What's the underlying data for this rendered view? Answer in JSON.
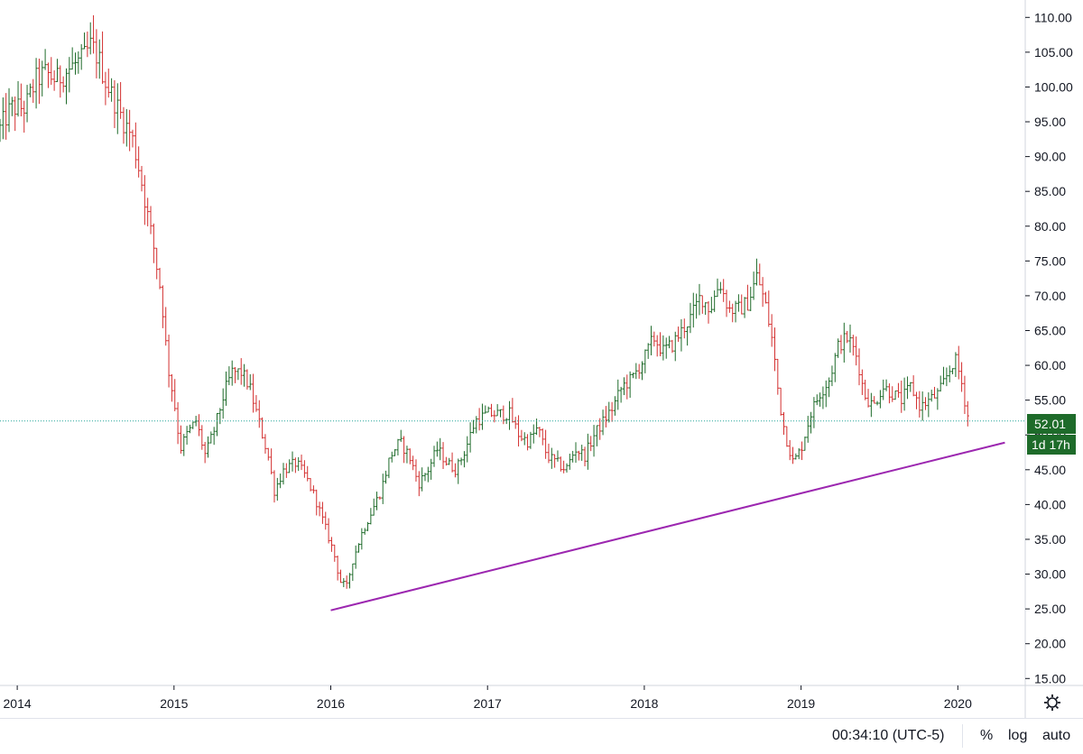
{
  "chart_data": {
    "type": "ohlc",
    "title": "",
    "x_range": [
      2013.89,
      2020.43
    ],
    "ylim": [
      14.0,
      112.5
    ],
    "x_ticks": [
      {
        "value": 2014,
        "label": "2014"
      },
      {
        "value": 2015,
        "label": "2015"
      },
      {
        "value": 2016,
        "label": "2016"
      },
      {
        "value": 2017,
        "label": "2017"
      },
      {
        "value": 2018,
        "label": "2018"
      },
      {
        "value": 2019,
        "label": "2019"
      },
      {
        "value": 2020,
        "label": "2020"
      }
    ],
    "y_ticks": [
      {
        "value": 15,
        "label": "15.00"
      },
      {
        "value": 20,
        "label": "20.00"
      },
      {
        "value": 25,
        "label": "25.00"
      },
      {
        "value": 30,
        "label": "30.00"
      },
      {
        "value": 35,
        "label": "35.00"
      },
      {
        "value": 40,
        "label": "40.00"
      },
      {
        "value": 45,
        "label": "45.00"
      },
      {
        "value": 50,
        "label": "50.00"
      },
      {
        "value": 55,
        "label": "55.00"
      },
      {
        "value": 60,
        "label": "60.00"
      },
      {
        "value": 65,
        "label": "65.00"
      },
      {
        "value": 70,
        "label": "70.00"
      },
      {
        "value": 75,
        "label": "75.00"
      },
      {
        "value": 80,
        "label": "80.00"
      },
      {
        "value": 85,
        "label": "85.00"
      },
      {
        "value": 90,
        "label": "90.00"
      },
      {
        "value": 95,
        "label": "95.00"
      },
      {
        "value": 100,
        "label": "100.00"
      },
      {
        "value": 105,
        "label": "105.00"
      },
      {
        "value": 110,
        "label": "110.00"
      }
    ],
    "close_path_points": [
      [
        2013.89,
        94
      ],
      [
        2013.96,
        97
      ],
      [
        2014.05,
        97
      ],
      [
        2014.12,
        101
      ],
      [
        2014.18,
        102
      ],
      [
        2014.25,
        101
      ],
      [
        2014.35,
        103
      ],
      [
        2014.42,
        104
      ],
      [
        2014.47,
        106
      ],
      [
        2014.52,
        104
      ],
      [
        2014.56,
        101
      ],
      [
        2014.62,
        98
      ],
      [
        2014.68,
        95
      ],
      [
        2014.73,
        93
      ],
      [
        2014.78,
        88
      ],
      [
        2014.82,
        83
      ],
      [
        2014.87,
        77
      ],
      [
        2014.92,
        70
      ],
      [
        2014.96,
        60
      ],
      [
        2015.0,
        55
      ],
      [
        2015.04,
        48
      ],
      [
        2015.08,
        50
      ],
      [
        2015.14,
        52
      ],
      [
        2015.2,
        47
      ],
      [
        2015.26,
        51
      ],
      [
        2015.32,
        56
      ],
      [
        2015.37,
        59
      ],
      [
        2015.43,
        59
      ],
      [
        2015.48,
        57
      ],
      [
        2015.54,
        52
      ],
      [
        2015.6,
        47
      ],
      [
        2015.64,
        42
      ],
      [
        2015.7,
        45
      ],
      [
        2015.78,
        46
      ],
      [
        2015.84,
        44
      ],
      [
        2015.9,
        41
      ],
      [
        2015.96,
        37
      ],
      [
        2016.02,
        33
      ],
      [
        2016.06,
        29
      ],
      [
        2016.1,
        28
      ],
      [
        2016.14,
        32
      ],
      [
        2016.2,
        36
      ],
      [
        2016.26,
        39
      ],
      [
        2016.32,
        42
      ],
      [
        2016.38,
        47
      ],
      [
        2016.44,
        49
      ],
      [
        2016.5,
        47
      ],
      [
        2016.56,
        43
      ],
      [
        2016.62,
        45
      ],
      [
        2016.68,
        48
      ],
      [
        2016.74,
        46
      ],
      [
        2016.8,
        45
      ],
      [
        2016.86,
        48
      ],
      [
        2016.92,
        52
      ],
      [
        2017.0,
        53
      ],
      [
        2017.08,
        53
      ],
      [
        2017.14,
        53
      ],
      [
        2017.2,
        50
      ],
      [
        2017.26,
        49
      ],
      [
        2017.32,
        51
      ],
      [
        2017.38,
        47
      ],
      [
        2017.44,
        46
      ],
      [
        2017.5,
        45
      ],
      [
        2017.56,
        48
      ],
      [
        2017.62,
        47
      ],
      [
        2017.68,
        50
      ],
      [
        2017.74,
        52
      ],
      [
        2017.8,
        54
      ],
      [
        2017.86,
        57
      ],
      [
        2017.92,
        58
      ],
      [
        2018.0,
        61
      ],
      [
        2018.06,
        64
      ],
      [
        2018.12,
        62
      ],
      [
        2018.18,
        63
      ],
      [
        2018.24,
        65
      ],
      [
        2018.3,
        67
      ],
      [
        2018.36,
        70
      ],
      [
        2018.42,
        68
      ],
      [
        2018.48,
        72
      ],
      [
        2018.54,
        68
      ],
      [
        2018.6,
        68
      ],
      [
        2018.66,
        69
      ],
      [
        2018.72,
        73
      ],
      [
        2018.78,
        68
      ],
      [
        2018.82,
        63
      ],
      [
        2018.86,
        55
      ],
      [
        2018.9,
        50
      ],
      [
        2018.95,
        46
      ],
      [
        2019.0,
        48
      ],
      [
        2019.06,
        53
      ],
      [
        2019.12,
        56
      ],
      [
        2019.18,
        58
      ],
      [
        2019.24,
        63
      ],
      [
        2019.3,
        64
      ],
      [
        2019.36,
        61
      ],
      [
        2019.4,
        56
      ],
      [
        2019.46,
        54
      ],
      [
        2019.52,
        57
      ],
      [
        2019.58,
        56
      ],
      [
        2019.64,
        55
      ],
      [
        2019.7,
        57
      ],
      [
        2019.76,
        54
      ],
      [
        2019.82,
        55
      ],
      [
        2019.88,
        56
      ],
      [
        2019.94,
        59
      ],
      [
        2019.98,
        61
      ],
      [
        2020.02,
        58
      ],
      [
        2020.06,
        53
      ],
      [
        2020.08,
        52.01
      ]
    ],
    "trendline": {
      "color": "#9c27b0",
      "x": [
        2016.0,
        2020.3
      ],
      "y": [
        24.8,
        48.9
      ]
    },
    "last_price": {
      "value": 52.01,
      "label": "52.01",
      "countdown": "1d 17h",
      "color": "#1e6b2a"
    },
    "up_color": "#1e6b2a",
    "down_color": "#d32f2f",
    "price_line_color": "#26a69a"
  },
  "bottom_bar": {
    "time": "00:34:10 (UTC-5)",
    "percent": "%",
    "log": "log",
    "auto": "auto"
  },
  "icons": {
    "settings": "gear-icon"
  }
}
